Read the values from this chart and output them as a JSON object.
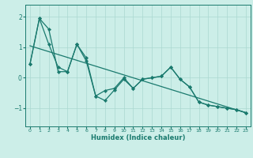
{
  "xlabel": "Humidex (Indice chaleur)",
  "bg_color": "#cceee8",
  "line_color": "#1a7a6e",
  "grid_color": "#aad8d0",
  "xlim": [
    -0.5,
    23.5
  ],
  "ylim": [
    -1.6,
    2.4
  ],
  "yticks": [
    -1,
    0,
    1,
    2
  ],
  "xticks": [
    0,
    1,
    2,
    3,
    4,
    5,
    6,
    7,
    8,
    9,
    10,
    11,
    12,
    13,
    14,
    15,
    16,
    17,
    18,
    19,
    20,
    21,
    22,
    23
  ],
  "trend_x": [
    0,
    23
  ],
  "trend_y": [
    1.05,
    -1.15
  ],
  "series1_x": [
    0,
    1,
    2,
    3,
    4,
    5,
    6,
    7,
    8,
    9,
    10,
    11,
    12,
    13,
    14,
    15,
    16,
    17,
    18,
    19,
    20,
    21,
    22,
    23
  ],
  "series1_y": [
    0.45,
    1.95,
    1.1,
    0.35,
    0.2,
    1.1,
    0.65,
    -0.6,
    -0.75,
    -0.4,
    -0.05,
    -0.35,
    -0.05,
    0.0,
    0.05,
    0.35,
    -0.05,
    -0.3,
    -0.8,
    -0.9,
    -0.95,
    -1.0,
    -1.05,
    -1.15
  ],
  "series2_x": [
    0,
    1,
    2,
    3,
    4,
    5,
    5,
    6,
    7,
    8,
    9,
    10,
    11,
    12,
    13,
    14,
    15,
    16,
    17,
    18,
    19,
    20,
    21,
    22,
    23
  ],
  "series2_y": [
    0.45,
    1.95,
    1.6,
    0.2,
    0.2,
    1.1,
    1.1,
    0.55,
    -0.6,
    -0.42,
    -0.35,
    0.0,
    -0.35,
    -0.05,
    0.0,
    0.05,
    0.35,
    -0.05,
    -0.3,
    -0.8,
    -0.9,
    -0.95,
    -1.0,
    -1.05,
    -1.15
  ],
  "markersize": 2.2,
  "linewidth": 0.9
}
